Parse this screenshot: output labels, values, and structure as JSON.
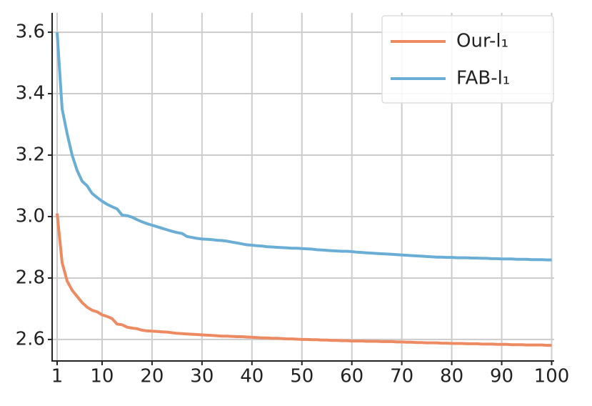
{
  "chart_data": {
    "type": "line",
    "x": [
      1,
      2,
      3,
      4,
      5,
      6,
      7,
      8,
      9,
      10,
      11,
      12,
      13,
      14,
      15,
      16,
      17,
      18,
      19,
      20,
      21,
      22,
      23,
      24,
      25,
      26,
      27,
      28,
      29,
      30,
      31,
      32,
      33,
      34,
      35,
      36,
      37,
      38,
      39,
      40,
      41,
      42,
      43,
      44,
      45,
      46,
      47,
      48,
      49,
      50,
      51,
      52,
      53,
      54,
      55,
      56,
      57,
      58,
      59,
      60,
      61,
      62,
      63,
      64,
      65,
      66,
      67,
      68,
      69,
      70,
      71,
      72,
      73,
      74,
      75,
      76,
      77,
      78,
      79,
      80,
      81,
      82,
      83,
      84,
      85,
      86,
      87,
      88,
      89,
      90,
      91,
      92,
      93,
      94,
      95,
      96,
      97,
      98,
      99,
      100
    ],
    "series": [
      {
        "name": "Our-l₁",
        "color": "#ee8a62",
        "values": [
          3.01,
          2.85,
          2.79,
          2.76,
          2.74,
          2.72,
          2.705,
          2.695,
          2.69,
          2.68,
          2.675,
          2.668,
          2.65,
          2.648,
          2.64,
          2.637,
          2.635,
          2.63,
          2.628,
          2.627,
          2.626,
          2.625,
          2.624,
          2.622,
          2.62,
          2.619,
          2.618,
          2.617,
          2.616,
          2.615,
          2.614,
          2.613,
          2.612,
          2.611,
          2.611,
          2.61,
          2.609,
          2.609,
          2.608,
          2.607,
          2.606,
          2.605,
          2.605,
          2.604,
          2.604,
          2.603,
          2.602,
          2.602,
          2.601,
          2.6,
          2.6,
          2.599,
          2.599,
          2.598,
          2.598,
          2.597,
          2.597,
          2.596,
          2.596,
          2.595,
          2.595,
          2.595,
          2.594,
          2.594,
          2.594,
          2.593,
          2.593,
          2.593,
          2.592,
          2.592,
          2.591,
          2.591,
          2.59,
          2.59,
          2.589,
          2.589,
          2.589,
          2.588,
          2.588,
          2.587,
          2.587,
          2.587,
          2.586,
          2.586,
          2.586,
          2.585,
          2.585,
          2.585,
          2.584,
          2.584,
          2.584,
          2.583,
          2.583,
          2.583,
          2.582,
          2.582,
          2.582,
          2.582,
          2.581,
          2.581
        ]
      },
      {
        "name": "FAB-l₁",
        "color": "#6aaed6",
        "values": [
          3.6,
          3.35,
          3.27,
          3.2,
          3.15,
          3.115,
          3.1,
          3.075,
          3.062,
          3.05,
          3.04,
          3.032,
          3.025,
          3.005,
          3.003,
          2.998,
          2.99,
          2.983,
          2.977,
          2.972,
          2.967,
          2.962,
          2.957,
          2.952,
          2.948,
          2.945,
          2.935,
          2.932,
          2.929,
          2.927,
          2.926,
          2.925,
          2.923,
          2.922,
          2.92,
          2.917,
          2.914,
          2.911,
          2.908,
          2.907,
          2.905,
          2.904,
          2.902,
          2.901,
          2.9,
          2.899,
          2.898,
          2.897,
          2.897,
          2.896,
          2.895,
          2.894,
          2.892,
          2.891,
          2.89,
          2.889,
          2.888,
          2.887,
          2.887,
          2.886,
          2.884,
          2.883,
          2.882,
          2.881,
          2.88,
          2.879,
          2.878,
          2.877,
          2.876,
          2.875,
          2.874,
          2.873,
          2.872,
          2.871,
          2.87,
          2.869,
          2.868,
          2.868,
          2.867,
          2.867,
          2.866,
          2.866,
          2.866,
          2.865,
          2.865,
          2.864,
          2.864,
          2.863,
          2.863,
          2.862,
          2.862,
          2.862,
          2.861,
          2.861,
          2.861,
          2.86,
          2.86,
          2.86,
          2.859,
          2.859
        ]
      }
    ],
    "xlim": [
      0,
      100.5
    ],
    "ylim": [
      2.53,
      3.663
    ],
    "xticks": [
      1,
      10,
      20,
      30,
      40,
      50,
      60,
      70,
      80,
      90,
      100
    ],
    "yticks": [
      2.6,
      2.8,
      {
        "value": 3,
        "label": "3.0"
      },
      3.2,
      3.4,
      3.6
    ],
    "grid": true,
    "legend": "upper right"
  }
}
